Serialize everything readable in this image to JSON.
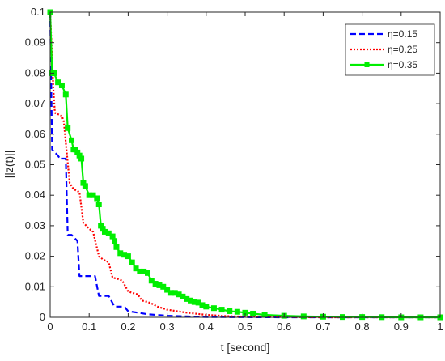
{
  "chart_data": {
    "type": "line",
    "title": "",
    "xlabel": "t [second]",
    "ylabel": "||z(t)||",
    "xlim": [
      0,
      1
    ],
    "ylim": [
      0,
      0.1
    ],
    "xticks": [
      "0",
      "0.1",
      "0.2",
      "0.3",
      "0.4",
      "0.5",
      "0.6",
      "0.7",
      "0.8",
      "0.9",
      "1"
    ],
    "yticks": [
      "0",
      "0.01",
      "0.02",
      "0.03",
      "0.04",
      "0.05",
      "0.06",
      "0.07",
      "0.08",
      "0.09",
      "0.1"
    ],
    "grid": false,
    "legend_position": "top-right",
    "series": [
      {
        "name": "η=0.15",
        "color": "#0000ff",
        "style": "dashed",
        "x": [
          0,
          0.005,
          0.02,
          0.025,
          0.04,
          0.045,
          0.05,
          0.055,
          0.07,
          0.075,
          0.09,
          0.1,
          0.115,
          0.125,
          0.14,
          0.15,
          0.165,
          0.175,
          0.19,
          0.2,
          0.225,
          0.25,
          0.3,
          0.35,
          0.4,
          0.5,
          0.6,
          0.8,
          1.0
        ],
        "values": [
          0.1,
          0.055,
          0.053,
          0.052,
          0.052,
          0.027,
          0.027,
          0.027,
          0.025,
          0.0135,
          0.0135,
          0.0135,
          0.0135,
          0.007,
          0.007,
          0.007,
          0.0035,
          0.0035,
          0.0035,
          0.002,
          0.0015,
          0.001,
          0.0005,
          0.0003,
          0.0001,
          5e-05,
          0.0,
          0.0,
          0.0
        ]
      },
      {
        "name": "η=0.25",
        "color": "#ff0000",
        "style": "dotted",
        "x": [
          0,
          0.008,
          0.012,
          0.03,
          0.035,
          0.05,
          0.06,
          0.075,
          0.085,
          0.1,
          0.11,
          0.125,
          0.135,
          0.15,
          0.16,
          0.175,
          0.185,
          0.2,
          0.21,
          0.225,
          0.235,
          0.25,
          0.26,
          0.275,
          0.3,
          0.35,
          0.4,
          0.45,
          0.5,
          0.6,
          0.7,
          0.8,
          1.0
        ],
        "values": [
          0.1,
          0.075,
          0.067,
          0.066,
          0.064,
          0.044,
          0.042,
          0.041,
          0.031,
          0.029,
          0.028,
          0.02,
          0.019,
          0.018,
          0.013,
          0.0125,
          0.012,
          0.0085,
          0.008,
          0.0075,
          0.0055,
          0.005,
          0.0045,
          0.0035,
          0.0025,
          0.0015,
          0.0008,
          0.0004,
          0.0002,
          0.0001,
          0.0,
          0.0,
          0.0
        ]
      },
      {
        "name": "η=0.35",
        "color": "#00ee00",
        "style": "solid-markers",
        "x": [
          0,
          0.005,
          0.01,
          0.02,
          0.03,
          0.04,
          0.045,
          0.055,
          0.06,
          0.065,
          0.07,
          0.075,
          0.08,
          0.085,
          0.09,
          0.1,
          0.11,
          0.12,
          0.125,
          0.13,
          0.135,
          0.14,
          0.15,
          0.16,
          0.165,
          0.17,
          0.18,
          0.19,
          0.2,
          0.21,
          0.22,
          0.23,
          0.24,
          0.25,
          0.26,
          0.27,
          0.28,
          0.29,
          0.3,
          0.31,
          0.32,
          0.33,
          0.34,
          0.35,
          0.36,
          0.37,
          0.38,
          0.39,
          0.4,
          0.42,
          0.44,
          0.46,
          0.48,
          0.5,
          0.52,
          0.55,
          0.6,
          0.65,
          0.7,
          0.75,
          0.8,
          0.85,
          0.9,
          0.95,
          1.0
        ],
        "values": [
          0.1,
          0.08,
          0.08,
          0.077,
          0.076,
          0.073,
          0.062,
          0.058,
          0.055,
          0.055,
          0.054,
          0.053,
          0.052,
          0.044,
          0.043,
          0.04,
          0.04,
          0.039,
          0.037,
          0.03,
          0.029,
          0.028,
          0.0275,
          0.0265,
          0.025,
          0.023,
          0.021,
          0.0205,
          0.02,
          0.018,
          0.016,
          0.015,
          0.015,
          0.0145,
          0.012,
          0.011,
          0.0105,
          0.01,
          0.009,
          0.008,
          0.008,
          0.0075,
          0.0068,
          0.006,
          0.0055,
          0.005,
          0.0048,
          0.004,
          0.0035,
          0.003,
          0.0025,
          0.002,
          0.0018,
          0.0015,
          0.0012,
          0.0008,
          0.0005,
          0.0003,
          0.0002,
          0.0001,
          0.0001,
          5e-05,
          0.0,
          0.0,
          0.0
        ]
      }
    ]
  }
}
